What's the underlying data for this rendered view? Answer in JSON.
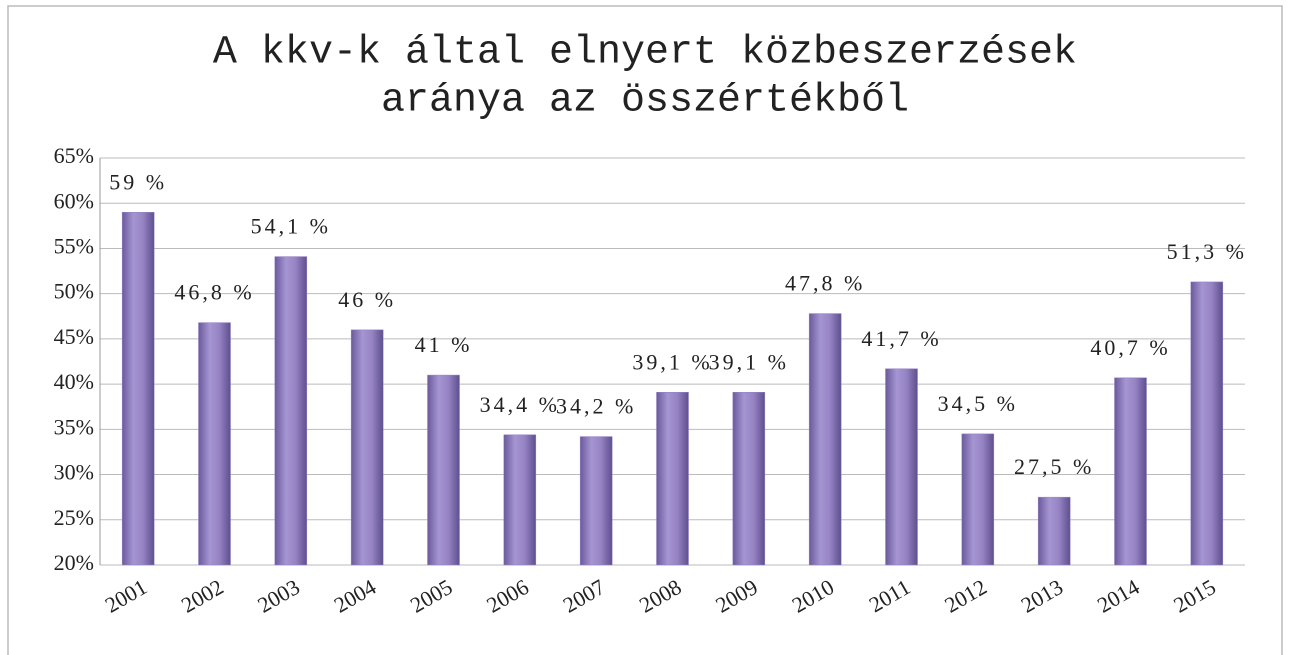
{
  "chart_data": {
    "type": "bar",
    "title": [
      "A kkv-k által elnyert közbeszerzések",
      "aránya az összértékből"
    ],
    "categories": [
      "2001",
      "2002",
      "2003",
      "2004",
      "2005",
      "2006",
      "2007",
      "2008",
      "2009",
      "2010",
      "2011",
      "2012",
      "2013",
      "2014",
      "2015"
    ],
    "values": [
      59,
      46.8,
      54.1,
      46,
      41,
      34.4,
      34.2,
      39.1,
      39.1,
      47.8,
      41.7,
      34.5,
      27.5,
      40.7,
      51.3
    ],
    "value_labels": [
      "59 %",
      "46,8 %",
      "54,1 %",
      "46 %",
      "41 %",
      "34,4 %",
      "34,2 %",
      "39,1 %",
      "39,1 %",
      "47,8 %",
      "41,7 %",
      "34,5 %",
      "27,5 %",
      "40,7 %",
      "51,3 %"
    ],
    "color": "#9683c4",
    "ylim": [
      20,
      65
    ],
    "yticks": [
      {
        "value": 20,
        "label": "20%"
      },
      {
        "value": 25,
        "label": "25%"
      },
      {
        "value": 30,
        "label": "30%"
      },
      {
        "value": 35,
        "label": "35%"
      },
      {
        "value": 40,
        "label": "40%"
      },
      {
        "value": 45,
        "label": "45%"
      },
      {
        "value": 50,
        "label": "50%"
      },
      {
        "value": 55,
        "label": "55%"
      },
      {
        "value": 60,
        "label": "60%"
      },
      {
        "value": 65,
        "label": "65%"
      }
    ],
    "grid": true
  }
}
